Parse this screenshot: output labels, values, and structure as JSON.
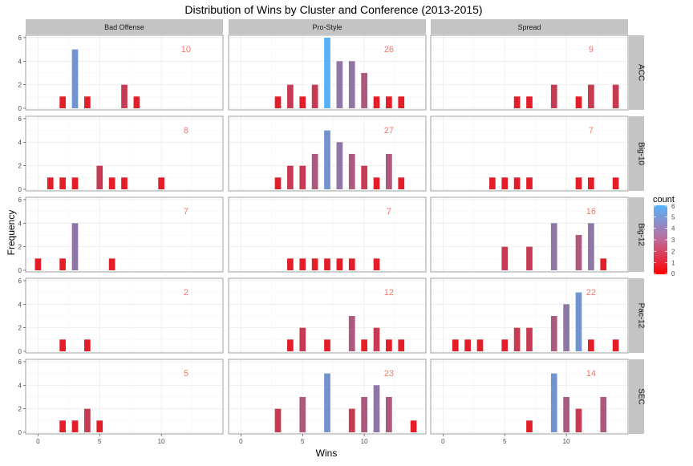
{
  "chart_data": {
    "type": "bar",
    "title": "Distribution of Wins by Cluster and Conference (2013-2015)",
    "xlabel": "Wins",
    "ylabel": "Frequency",
    "xlim": [
      -1,
      15
    ],
    "ylim": [
      0,
      6.2
    ],
    "x_ticks": [
      0,
      5,
      10
    ],
    "y_ticks": [
      0,
      2,
      4,
      6
    ],
    "grid": true,
    "columns": [
      "Bad Offense",
      "Pro-Style",
      "Spread"
    ],
    "rows": [
      "ACC",
      "Big-10",
      "Big-12",
      "Pac-12",
      "SEC"
    ],
    "color_scale": {
      "low": "#FF0000",
      "high": "#56B1F7",
      "min": 0,
      "max": 6
    },
    "legend": {
      "title": "count",
      "ticks": [
        6,
        5,
        4,
        3,
        2,
        1,
        0
      ],
      "position": "right"
    },
    "panels": [
      {
        "row": "ACC",
        "column": "Bad Offense",
        "total": "10",
        "bars": [
          [
            2,
            1
          ],
          [
            3,
            5
          ],
          [
            4,
            1
          ],
          [
            7,
            2
          ],
          [
            8,
            1
          ]
        ]
      },
      {
        "row": "ACC",
        "column": "Pro-Style",
        "total": "26",
        "bars": [
          [
            3,
            1
          ],
          [
            4,
            2
          ],
          [
            5,
            1
          ],
          [
            6,
            2
          ],
          [
            7,
            6
          ],
          [
            8,
            4
          ],
          [
            9,
            4
          ],
          [
            10,
            3
          ],
          [
            11,
            1
          ],
          [
            12,
            1
          ],
          [
            13,
            1
          ]
        ]
      },
      {
        "row": "ACC",
        "column": "Spread",
        "total": "9",
        "bars": [
          [
            6,
            1
          ],
          [
            7,
            1
          ],
          [
            9,
            2
          ],
          [
            11,
            1
          ],
          [
            12,
            2
          ],
          [
            14,
            2
          ]
        ]
      },
      {
        "row": "Big-10",
        "column": "Bad Offense",
        "total": "8",
        "bars": [
          [
            1,
            1
          ],
          [
            2,
            1
          ],
          [
            3,
            1
          ],
          [
            5,
            2
          ],
          [
            6,
            1
          ],
          [
            7,
            1
          ],
          [
            10,
            1
          ]
        ]
      },
      {
        "row": "Big-10",
        "column": "Pro-Style",
        "total": "27",
        "bars": [
          [
            3,
            1
          ],
          [
            4,
            2
          ],
          [
            5,
            2
          ],
          [
            6,
            3
          ],
          [
            7,
            5
          ],
          [
            8,
            4
          ],
          [
            9,
            3
          ],
          [
            10,
            2
          ],
          [
            11,
            1
          ],
          [
            12,
            3
          ],
          [
            13,
            1
          ]
        ]
      },
      {
        "row": "Big-10",
        "column": "Spread",
        "total": "7",
        "bars": [
          [
            4,
            1
          ],
          [
            5,
            1
          ],
          [
            6,
            1
          ],
          [
            7,
            1
          ],
          [
            11,
            1
          ],
          [
            12,
            1
          ],
          [
            14,
            1
          ]
        ]
      },
      {
        "row": "Big-12",
        "column": "Bad Offense",
        "total": "7",
        "bars": [
          [
            0,
            1
          ],
          [
            2,
            1
          ],
          [
            3,
            4
          ],
          [
            6,
            1
          ]
        ]
      },
      {
        "row": "Big-12",
        "column": "Pro-Style",
        "total": "7",
        "bars": [
          [
            4,
            1
          ],
          [
            5,
            1
          ],
          [
            6,
            1
          ],
          [
            7,
            1
          ],
          [
            8,
            1
          ],
          [
            9,
            1
          ],
          [
            11,
            1
          ]
        ]
      },
      {
        "row": "Big-12",
        "column": "Spread",
        "total": "16",
        "bars": [
          [
            5,
            2
          ],
          [
            7,
            2
          ],
          [
            9,
            4
          ],
          [
            11,
            3
          ],
          [
            12,
            4
          ],
          [
            13,
            1
          ]
        ]
      },
      {
        "row": "Pac-12",
        "column": "Bad Offense",
        "total": "2",
        "bars": [
          [
            2,
            1
          ],
          [
            4,
            1
          ]
        ]
      },
      {
        "row": "Pac-12",
        "column": "Pro-Style",
        "total": "12",
        "bars": [
          [
            4,
            1
          ],
          [
            5,
            2
          ],
          [
            7,
            1
          ],
          [
            9,
            3
          ],
          [
            10,
            1
          ],
          [
            11,
            2
          ],
          [
            12,
            1
          ],
          [
            13,
            1
          ]
        ]
      },
      {
        "row": "Pac-12",
        "column": "Spread",
        "total": "22",
        "bars": [
          [
            1,
            1
          ],
          [
            2,
            1
          ],
          [
            3,
            1
          ],
          [
            5,
            1
          ],
          [
            6,
            2
          ],
          [
            7,
            2
          ],
          [
            9,
            3
          ],
          [
            10,
            4
          ],
          [
            11,
            5
          ],
          [
            12,
            1
          ],
          [
            14,
            1
          ]
        ]
      },
      {
        "row": "SEC",
        "column": "Bad Offense",
        "total": "5",
        "bars": [
          [
            2,
            1
          ],
          [
            3,
            1
          ],
          [
            4,
            2
          ],
          [
            5,
            1
          ]
        ]
      },
      {
        "row": "SEC",
        "column": "Pro-Style",
        "total": "23",
        "bars": [
          [
            3,
            2
          ],
          [
            5,
            3
          ],
          [
            7,
            5
          ],
          [
            9,
            2
          ],
          [
            10,
            3
          ],
          [
            11,
            4
          ],
          [
            12,
            3
          ],
          [
            14,
            1
          ]
        ]
      },
      {
        "row": "SEC",
        "column": "Spread",
        "total": "14",
        "bars": [
          [
            7,
            1
          ],
          [
            9,
            5
          ],
          [
            10,
            3
          ],
          [
            11,
            2
          ],
          [
            13,
            3
          ]
        ]
      }
    ]
  }
}
